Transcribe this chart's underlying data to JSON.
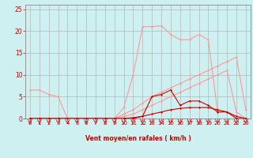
{
  "background_color": "#cff0f0",
  "grid_color": "#aaaaaa",
  "xlabel": "Vent moyen/en rafales ( km/h )",
  "xlabel_color": "#cc0000",
  "xlim": [
    -0.5,
    23.5
  ],
  "ylim": [
    0,
    26
  ],
  "yticks": [
    0,
    5,
    10,
    15,
    20,
    25
  ],
  "xticks": [
    0,
    1,
    2,
    3,
    4,
    5,
    6,
    7,
    8,
    9,
    10,
    11,
    12,
    13,
    14,
    15,
    16,
    17,
    18,
    19,
    20,
    21,
    22,
    23
  ],
  "light": "#ff9999",
  "dark": "#cc0000",
  "series": [
    {
      "name": "spike_light",
      "color": "#ff9999",
      "x": [
        0,
        1,
        2,
        3,
        4,
        5,
        6,
        7,
        8,
        9,
        10,
        11,
        12,
        13,
        14,
        15,
        16,
        17,
        18,
        19,
        20,
        21,
        22,
        23
      ],
      "y": [
        6.5,
        6.5,
        5.5,
        5.0,
        0,
        0,
        0,
        0,
        0,
        0,
        2.5,
        10,
        21,
        21,
        21.2,
        19.2,
        18,
        18,
        19.2,
        18,
        1.5,
        1.5,
        0,
        0
      ]
    },
    {
      "name": "diagonal_upper_light",
      "color": "#ff9999",
      "x": [
        0,
        1,
        2,
        3,
        4,
        5,
        6,
        7,
        8,
        9,
        10,
        11,
        12,
        13,
        14,
        15,
        16,
        17,
        18,
        19,
        20,
        21,
        22,
        23
      ],
      "y": [
        0,
        0,
        0,
        0,
        0,
        0,
        0,
        0,
        0,
        0,
        1,
        2,
        3.5,
        5,
        6,
        7,
        8,
        9,
        10,
        11,
        12,
        13,
        14,
        2
      ]
    },
    {
      "name": "diagonal_lower_light",
      "color": "#ff9999",
      "x": [
        0,
        1,
        2,
        3,
        4,
        5,
        6,
        7,
        8,
        9,
        10,
        11,
        12,
        13,
        14,
        15,
        16,
        17,
        18,
        19,
        20,
        21,
        22,
        23
      ],
      "y": [
        0,
        0,
        0,
        0,
        0,
        0,
        0,
        0,
        0,
        0,
        0.5,
        1,
        2,
        3,
        4,
        5,
        6,
        7,
        8,
        9,
        10,
        11,
        1.5,
        0
      ]
    },
    {
      "name": "spike_dark",
      "color": "#cc0000",
      "x": [
        0,
        1,
        2,
        3,
        4,
        5,
        6,
        7,
        8,
        9,
        10,
        11,
        12,
        13,
        14,
        15,
        16,
        17,
        18,
        19,
        20,
        21,
        22,
        23
      ],
      "y": [
        0,
        0,
        0,
        0,
        0,
        0,
        0,
        0,
        0,
        0,
        0,
        0,
        0.5,
        5,
        5.5,
        6.5,
        3,
        4,
        4,
        3,
        1.5,
        1.5,
        0,
        0
      ]
    },
    {
      "name": "flat_dark",
      "color": "#cc0000",
      "x": [
        0,
        1,
        2,
        3,
        4,
        5,
        6,
        7,
        8,
        9,
        10,
        11,
        12,
        13,
        14,
        15,
        16,
        17,
        18,
        19,
        20,
        21,
        22,
        23
      ],
      "y": [
        0,
        0,
        0,
        0,
        0,
        0,
        0,
        0,
        0,
        0,
        0,
        0.2,
        0.5,
        1,
        1.5,
        2,
        2.3,
        2.5,
        2.5,
        2.5,
        2,
        1.5,
        0.5,
        0
      ]
    }
  ]
}
